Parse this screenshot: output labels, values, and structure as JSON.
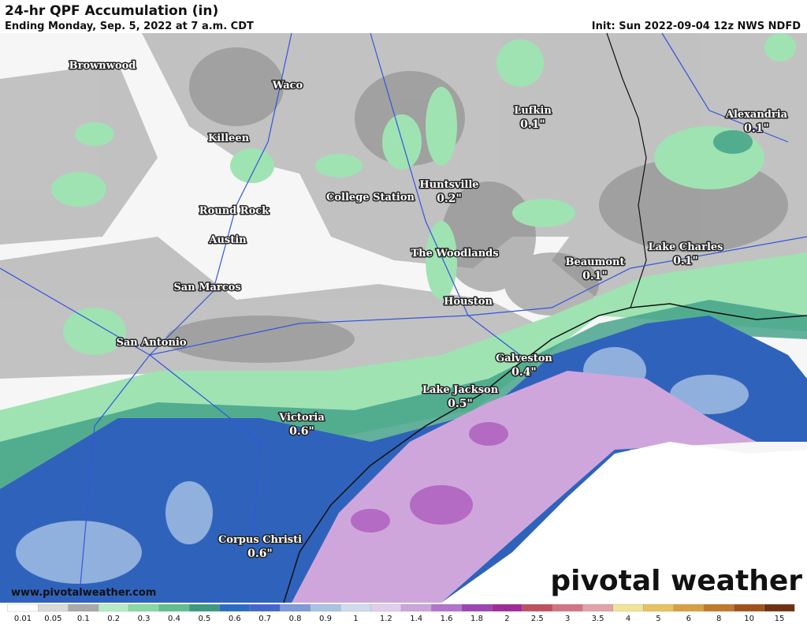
{
  "header": {
    "title": "24-hr QPF Accumulation (in)",
    "subtitle": "Ending Monday, Sep. 5, 2022 at 7 a.m. CDT",
    "init": "Init: Sun 2022-09-04 12z NWS NDFD"
  },
  "cities": [
    {
      "name": "Brownwood"
    },
    {
      "name": "Waco"
    },
    {
      "name": "Lufkin",
      "value": "0.1\""
    },
    {
      "name": "Alexandria",
      "value": "0.1\""
    },
    {
      "name": "Killeen"
    },
    {
      "name": "Huntsville",
      "value": "0.2\""
    },
    {
      "name": "College Station"
    },
    {
      "name": "Round Rock"
    },
    {
      "name": "Austin"
    },
    {
      "name": "The Woodlands"
    },
    {
      "name": "Lake Charles",
      "value": "0.1\""
    },
    {
      "name": "Beaumont",
      "value": "0.1\""
    },
    {
      "name": "San Marcos"
    },
    {
      "name": "Houston"
    },
    {
      "name": "San Antonio"
    },
    {
      "name": "Galveston",
      "value": "0.4\""
    },
    {
      "name": "Lake Jackson",
      "value": "0.5\""
    },
    {
      "name": "Victoria",
      "value": "0.6\""
    },
    {
      "name": "Corpus Christi",
      "value": "0.6\""
    }
  ],
  "footer": {
    "website": "www.pivotalweather.com",
    "logo": "pivotal weather"
  },
  "legend": [
    {
      "label": "0.01",
      "color": "#ffffff"
    },
    {
      "label": "0.05",
      "color": "#d9d9d9"
    },
    {
      "label": "0.1",
      "color": "#a9a9a9"
    },
    {
      "label": "0.2",
      "color": "#b4ecc4"
    },
    {
      "label": "0.3",
      "color": "#88d9a4"
    },
    {
      "label": "0.4",
      "color": "#5fbf8e"
    },
    {
      "label": "0.5",
      "color": "#3a9a80"
    },
    {
      "label": "0.6",
      "color": "#2b6cc0"
    },
    {
      "label": "0.7",
      "color": "#4466cc"
    },
    {
      "label": "0.8",
      "color": "#7c9bd8"
    },
    {
      "label": "0.9",
      "color": "#a8c2e2"
    },
    {
      "label": "1",
      "color": "#cddcec"
    },
    {
      "label": "1.2",
      "color": "#e2cdea"
    },
    {
      "label": "1.4",
      "color": "#cba4dc"
    },
    {
      "label": "1.6",
      "color": "#b374cc"
    },
    {
      "label": "1.8",
      "color": "#9c46b4"
    },
    {
      "label": "2",
      "color": "#a02c98"
    },
    {
      "label": "2.5",
      "color": "#c05060"
    },
    {
      "label": "3",
      "color": "#d27484"
    },
    {
      "label": "3.5",
      "color": "#e2a2aa"
    },
    {
      "label": "4",
      "color": "#f2e496"
    },
    {
      "label": "5",
      "color": "#e8c262"
    },
    {
      "label": "6",
      "color": "#d8a040"
    },
    {
      "label": "8",
      "color": "#c07a2a"
    },
    {
      "label": "10",
      "color": "#a0521a"
    },
    {
      "label": "15",
      "color": "#703012"
    }
  ]
}
